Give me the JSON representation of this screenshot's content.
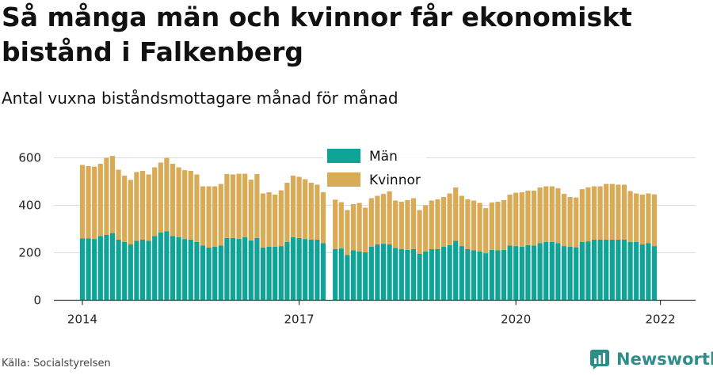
{
  "title": "Så många män och kvinnor får ekonomiskt bistånd i Falkenberg",
  "subtitle": "Antal vuxna biståndsmottagare månad för månad",
  "source": "Källa: Socialstyrelsen",
  "brand": "Newsworthy",
  "chart_data": {
    "type": "bar",
    "stacked": true,
    "x_ticks": [
      "2014",
      "2017",
      "2020",
      "2022"
    ],
    "y_ticks": [
      0,
      200,
      400,
      600
    ],
    "ylim": [
      0,
      620
    ],
    "grid": true,
    "legend_position": "top-center",
    "missing_months": [
      "2017-06"
    ],
    "series": [
      {
        "name": "Män",
        "color": "#10a397",
        "values": [
          260,
          260,
          258,
          270,
          275,
          283,
          255,
          245,
          235,
          250,
          255,
          250,
          270,
          285,
          290,
          270,
          265,
          258,
          255,
          245,
          230,
          222,
          225,
          230,
          262,
          262,
          258,
          265,
          252,
          262,
          222,
          225,
          225,
          228,
          245,
          265,
          262,
          258,
          255,
          255,
          240,
          216,
          218,
          190,
          210,
          205,
          202,
          225,
          235,
          238,
          235,
          220,
          215,
          212,
          215,
          195,
          205,
          215,
          215,
          225,
          232,
          250,
          228,
          215,
          210,
          205,
          198,
          212,
          210,
          212,
          230,
          228,
          225,
          232,
          230,
          240,
          245,
          245,
          240,
          228,
          225,
          223,
          245,
          248,
          255,
          255,
          255,
          255,
          255,
          255,
          245,
          245,
          235,
          240,
          228
        ]
      },
      {
        "name": "Kvinnor",
        "color": "#daab57",
        "values": [
          310,
          305,
          305,
          305,
          325,
          325,
          295,
          280,
          272,
          290,
          290,
          280,
          290,
          295,
          310,
          305,
          295,
          290,
          290,
          285,
          250,
          258,
          255,
          260,
          270,
          268,
          275,
          268,
          256,
          270,
          228,
          230,
          220,
          235,
          250,
          260,
          258,
          252,
          240,
          232,
          215,
          208,
          195,
          190,
          195,
          205,
          188,
          205,
          205,
          210,
          225,
          200,
          200,
          210,
          215,
          185,
          195,
          205,
          210,
          210,
          218,
          225,
          212,
          210,
          210,
          205,
          190,
          200,
          205,
          210,
          215,
          225,
          230,
          230,
          232,
          235,
          235,
          235,
          232,
          220,
          210,
          210,
          223,
          228,
          225,
          225,
          235,
          235,
          232,
          232,
          215,
          205,
          210,
          210,
          218
        ]
      }
    ]
  }
}
